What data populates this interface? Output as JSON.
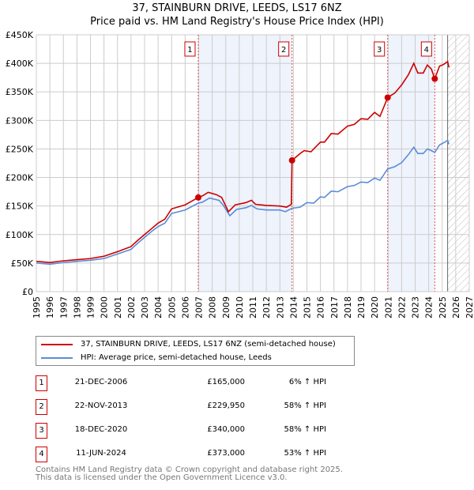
{
  "title": "37, STAINBURN DRIVE, LEEDS, LS17 6NZ",
  "subtitle": "Price paid vs. HM Land Registry's House Price Index (HPI)",
  "chart_data": {
    "type": "line",
    "xlim": [
      1995,
      2027
    ],
    "ylim": [
      0,
      450000
    ],
    "yticks": [
      {
        "v": 0,
        "label": "£0"
      },
      {
        "v": 50000,
        "label": "£50K"
      },
      {
        "v": 100000,
        "label": "£100K"
      },
      {
        "v": 150000,
        "label": "£150K"
      },
      {
        "v": 200000,
        "label": "£200K"
      },
      {
        "v": 250000,
        "label": "£250K"
      },
      {
        "v": 300000,
        "label": "£300K"
      },
      {
        "v": 350000,
        "label": "£350K"
      },
      {
        "v": 400000,
        "label": "£400K"
      },
      {
        "v": 450000,
        "label": "£450K"
      }
    ],
    "xticks": [
      "1995",
      "1996",
      "1997",
      "1998",
      "1999",
      "2000",
      "2001",
      "2002",
      "2003",
      "2004",
      "2005",
      "2006",
      "2007",
      "2008",
      "2009",
      "2010",
      "2011",
      "2012",
      "2013",
      "2014",
      "2015",
      "2016",
      "2017",
      "2018",
      "2019",
      "2020",
      "2021",
      "2022",
      "2023",
      "2024",
      "2025",
      "2026",
      "2027"
    ],
    "shaded": [
      [
        2006.97,
        2013.9
      ],
      [
        2020.97,
        2024.45
      ]
    ],
    "forecast_start": 2025.4,
    "series": [
      {
        "name": "37, STAINBURN DRIVE, LEEDS, LS17 6NZ (semi-detached house)",
        "color": "#cc0000",
        "points": [
          [
            1995,
            53000
          ],
          [
            1996,
            51000
          ],
          [
            1997,
            54000
          ],
          [
            1998,
            56000
          ],
          [
            1999,
            58000
          ],
          [
            2000,
            62000
          ],
          [
            2001,
            70000
          ],
          [
            2002,
            79000
          ],
          [
            2002.5,
            90000
          ],
          [
            2003,
            100000
          ],
          [
            2003.5,
            110000
          ],
          [
            2004,
            120000
          ],
          [
            2004.5,
            127000
          ],
          [
            2005,
            145000
          ],
          [
            2006,
            152000
          ],
          [
            2006.97,
            165000
          ],
          [
            2007.3,
            168000
          ],
          [
            2007.7,
            174000
          ],
          [
            2008.3,
            170000
          ],
          [
            2008.7,
            165000
          ],
          [
            2009.2,
            140000
          ],
          [
            2009.7,
            152000
          ],
          [
            2010.5,
            156000
          ],
          [
            2010.9,
            160000
          ],
          [
            2011.2,
            153000
          ],
          [
            2012,
            151000
          ],
          [
            2013,
            150000
          ],
          [
            2013.5,
            148000
          ],
          [
            2013.85,
            153000
          ],
          [
            2013.9,
            229950
          ],
          [
            2014.5,
            242000
          ],
          [
            2014.8,
            247000
          ],
          [
            2015.3,
            245000
          ],
          [
            2016,
            262000
          ],
          [
            2016.3,
            262000
          ],
          [
            2016.8,
            277000
          ],
          [
            2017.3,
            276000
          ],
          [
            2018,
            290000
          ],
          [
            2018.5,
            293000
          ],
          [
            2019,
            303000
          ],
          [
            2019.5,
            302000
          ],
          [
            2020,
            314000
          ],
          [
            2020.4,
            307000
          ],
          [
            2020.97,
            340000
          ],
          [
            2021.5,
            348000
          ],
          [
            2022,
            362000
          ],
          [
            2022.5,
            380000
          ],
          [
            2022.9,
            400000
          ],
          [
            2023.2,
            383000
          ],
          [
            2023.6,
            383000
          ],
          [
            2023.9,
            397000
          ],
          [
            2024.2,
            390000
          ],
          [
            2024.45,
            373000
          ],
          [
            2024.8,
            395000
          ],
          [
            2025.1,
            398000
          ],
          [
            2025.4,
            403000
          ],
          [
            2025.5,
            393000
          ]
        ]
      },
      {
        "name": "HPI: Average price, semi-detached house, Leeds",
        "color": "#5b8dd6",
        "points": [
          [
            1995,
            50000
          ],
          [
            1996,
            48000
          ],
          [
            1997,
            51000
          ],
          [
            1998,
            53000
          ],
          [
            1999,
            55000
          ],
          [
            2000,
            58000
          ],
          [
            2001,
            66000
          ],
          [
            2002,
            74000
          ],
          [
            2002.5,
            85000
          ],
          [
            2003,
            95000
          ],
          [
            2003.5,
            105000
          ],
          [
            2004,
            114000
          ],
          [
            2004.5,
            120000
          ],
          [
            2005,
            137000
          ],
          [
            2006,
            143000
          ],
          [
            2006.97,
            155000
          ],
          [
            2007.3,
            157000
          ],
          [
            2007.8,
            164000
          ],
          [
            2008.5,
            160000
          ],
          [
            2008.8,
            152000
          ],
          [
            2009.3,
            133000
          ],
          [
            2009.8,
            144000
          ],
          [
            2010.5,
            147000
          ],
          [
            2010.9,
            151000
          ],
          [
            2011.3,
            145000
          ],
          [
            2012,
            143000
          ],
          [
            2013,
            143000
          ],
          [
            2013.4,
            140000
          ],
          [
            2013.9,
            146000
          ],
          [
            2014.5,
            148000
          ],
          [
            2015,
            156000
          ],
          [
            2015.5,
            155000
          ],
          [
            2016,
            166000
          ],
          [
            2016.3,
            165000
          ],
          [
            2016.8,
            176000
          ],
          [
            2017.3,
            175000
          ],
          [
            2018,
            184000
          ],
          [
            2018.5,
            186000
          ],
          [
            2019,
            192000
          ],
          [
            2019.5,
            191000
          ],
          [
            2020,
            199000
          ],
          [
            2020.4,
            195000
          ],
          [
            2020.97,
            215000
          ],
          [
            2021.5,
            219000
          ],
          [
            2022,
            226000
          ],
          [
            2022.5,
            240000
          ],
          [
            2022.9,
            253000
          ],
          [
            2023.2,
            242000
          ],
          [
            2023.6,
            242000
          ],
          [
            2023.9,
            250000
          ],
          [
            2024.2,
            247000
          ],
          [
            2024.45,
            244000
          ],
          [
            2024.8,
            257000
          ],
          [
            2025.2,
            262000
          ],
          [
            2025.4,
            265000
          ],
          [
            2025.5,
            258000
          ]
        ]
      }
    ],
    "sales": [
      {
        "n": "1",
        "x": 2006.97,
        "y": 165000
      },
      {
        "n": "2",
        "x": 2013.9,
        "y": 229950
      },
      {
        "n": "3",
        "x": 2020.97,
        "y": 340000
      },
      {
        "n": "4",
        "x": 2024.45,
        "y": 373000
      }
    ]
  },
  "legend": {
    "property": "37, STAINBURN DRIVE, LEEDS, LS17 6NZ (semi-detached house)",
    "hpi": "HPI: Average price, semi-detached house, Leeds"
  },
  "transactions": [
    {
      "n": "1",
      "date": "21-DEC-2006",
      "price": "£165,000",
      "hpi": "6% ↑ HPI"
    },
    {
      "n": "2",
      "date": "22-NOV-2013",
      "price": "£229,950",
      "hpi": "58% ↑ HPI"
    },
    {
      "n": "3",
      "date": "18-DEC-2020",
      "price": "£340,000",
      "hpi": "58% ↑ HPI"
    },
    {
      "n": "4",
      "date": "11-JUN-2024",
      "price": "£373,000",
      "hpi": "53% ↑ HPI"
    }
  ],
  "footer": [
    "Contains HM Land Registry data © Crown copyright and database right 2025.",
    "This data is licensed under the Open Government Licence v3.0."
  ]
}
